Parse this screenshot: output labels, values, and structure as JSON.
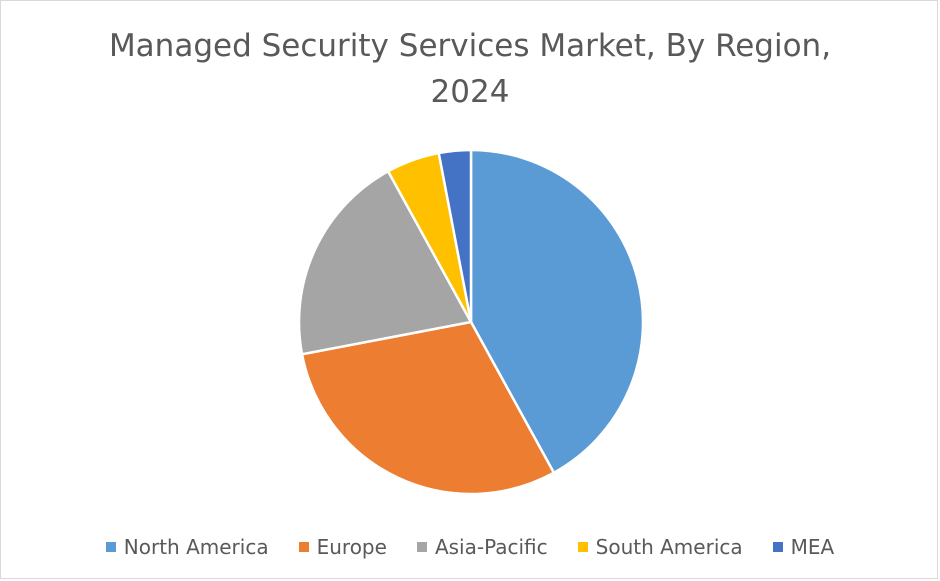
{
  "chart_data": {
    "type": "pie",
    "title_lines": [
      "Managed Security Services Market, By Region,",
      "2024"
    ],
    "categories": [
      "North America",
      "Europe",
      "Asia-Pacific",
      "South America",
      "MEA"
    ],
    "values": [
      42,
      30,
      20,
      5,
      3
    ],
    "unit": "%",
    "colors": [
      "#5b9bd5",
      "#ed7d31",
      "#a5a5a5",
      "#ffc000",
      "#4472c4"
    ],
    "start_angle_deg": 0,
    "direction": "clockwise",
    "legend": {
      "position": "bottom",
      "entries": [
        "North America",
        "Europe",
        "Asia-Pacific",
        "South America",
        "MEA"
      ]
    }
  }
}
